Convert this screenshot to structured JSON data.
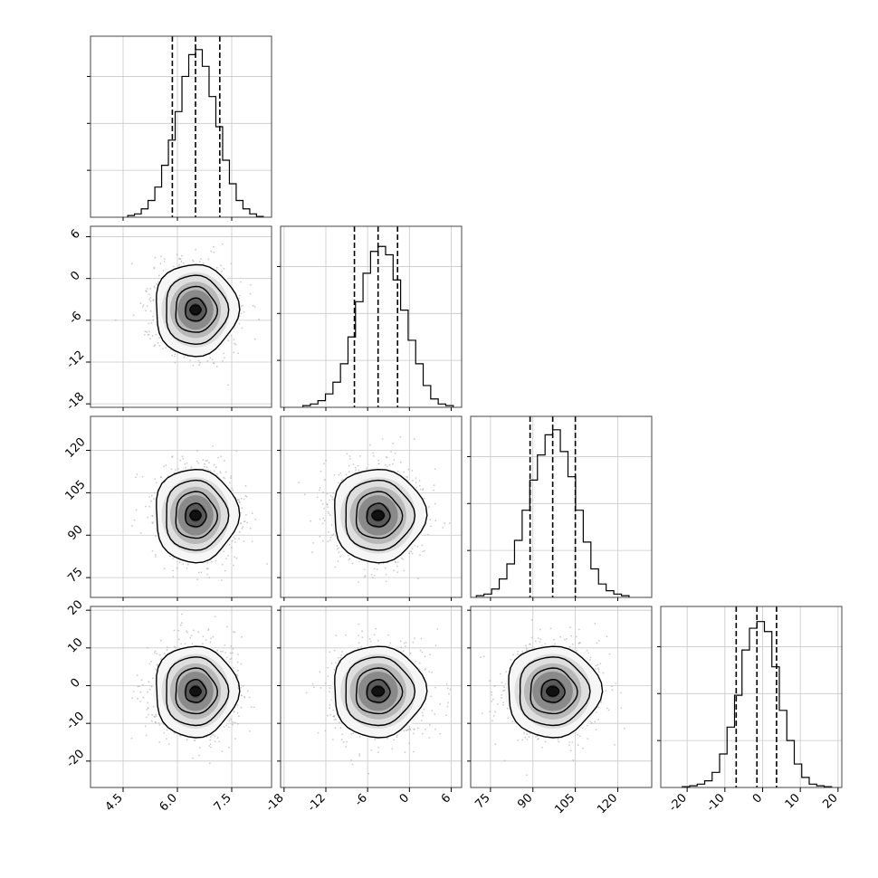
{
  "chart_data": {
    "type": "corner",
    "grid": true,
    "parameters": [
      {
        "index": 0,
        "range": [
          3.6,
          8.6
        ],
        "ticks": [
          "4.5",
          "6.0",
          "7.5"
        ],
        "tick_values": [
          4.5,
          6.0,
          7.5
        ],
        "mean": 6.5,
        "sd": 0.52,
        "quantiles": [
          5.86,
          6.5,
          7.17
        ]
      },
      {
        "index": 1,
        "range": [
          -18.5,
          7.5
        ],
        "ticks": [
          "-18",
          "-12",
          "-6",
          "0",
          "6"
        ],
        "tick_values": [
          -18,
          -12,
          -6,
          0,
          6
        ],
        "mean": -4.5,
        "sd": 3.0,
        "quantiles": [
          -7.9,
          -4.5,
          -1.7
        ]
      },
      {
        "index": 2,
        "range": [
          68,
          132
        ],
        "ticks": [
          "75",
          "90",
          "105",
          "120"
        ],
        "tick_values": [
          75,
          90,
          105,
          120
        ],
        "mean": 97,
        "sd": 7.5,
        "quantiles": [
          89,
          97,
          105
        ]
      },
      {
        "index": 3,
        "range": [
          -27,
          21
        ],
        "ticks": [
          "-20",
          "-10",
          "0",
          "10",
          "20"
        ],
        "tick_values": [
          -20,
          -10,
          0,
          10,
          20
        ],
        "mean": -1.5,
        "sd": 5.5,
        "quantiles": [
          -7,
          -1.5,
          3.7
        ]
      }
    ],
    "histograms": [
      {
        "param": 0,
        "bins": 20,
        "relative_heights": [
          0.01,
          0.02,
          0.05,
          0.1,
          0.18,
          0.31,
          0.46,
          0.63,
          0.84,
          0.97,
          1.0,
          0.9,
          0.72,
          0.54,
          0.34,
          0.2,
          0.1,
          0.05,
          0.02,
          0.005
        ]
      },
      {
        "param": 1,
        "bins": 20,
        "relative_heights": [
          0.01,
          0.02,
          0.04,
          0.08,
          0.15,
          0.26,
          0.42,
          0.63,
          0.8,
          0.93,
          0.96,
          0.91,
          0.76,
          0.58,
          0.4,
          0.26,
          0.13,
          0.05,
          0.02,
          0.01
        ]
      },
      {
        "param": 2,
        "bins": 20,
        "relative_heights": [
          0.01,
          0.02,
          0.05,
          0.11,
          0.2,
          0.34,
          0.52,
          0.7,
          0.85,
          0.97,
          1.0,
          0.87,
          0.72,
          0.52,
          0.33,
          0.17,
          0.08,
          0.04,
          0.02,
          0.01
        ]
      },
      {
        "param": 3,
        "bins": 20,
        "relative_heights": [
          0.005,
          0.01,
          0.02,
          0.04,
          0.09,
          0.2,
          0.36,
          0.55,
          0.82,
          0.95,
          0.99,
          0.93,
          0.72,
          0.46,
          0.28,
          0.14,
          0.06,
          0.02,
          0.01,
          0.005
        ]
      }
    ],
    "panels_2d": [
      {
        "x_param": 0,
        "y_param": 1,
        "contour_levels": [
          0.5,
          1.0,
          1.5,
          2.0
        ]
      },
      {
        "x_param": 0,
        "y_param": 2,
        "contour_levels": [
          0.5,
          1.0,
          1.5,
          2.0
        ]
      },
      {
        "x_param": 1,
        "y_param": 2,
        "contour_levels": [
          0.5,
          1.0,
          1.5,
          2.0
        ]
      },
      {
        "x_param": 0,
        "y_param": 3,
        "contour_levels": [
          0.5,
          1.0,
          1.5,
          2.0
        ]
      },
      {
        "x_param": 1,
        "y_param": 3,
        "contour_levels": [
          0.5,
          1.0,
          1.5,
          2.0
        ]
      },
      {
        "x_param": 2,
        "y_param": 3,
        "contour_levels": [
          0.5,
          1.0,
          1.5,
          2.0
        ]
      }
    ],
    "colors": {
      "scatter": "#aaaaaa",
      "line": "#000000",
      "grid": "#c8c8c8",
      "density_light": "#f5f5f5",
      "density_dark": "#1a1a1a"
    }
  }
}
